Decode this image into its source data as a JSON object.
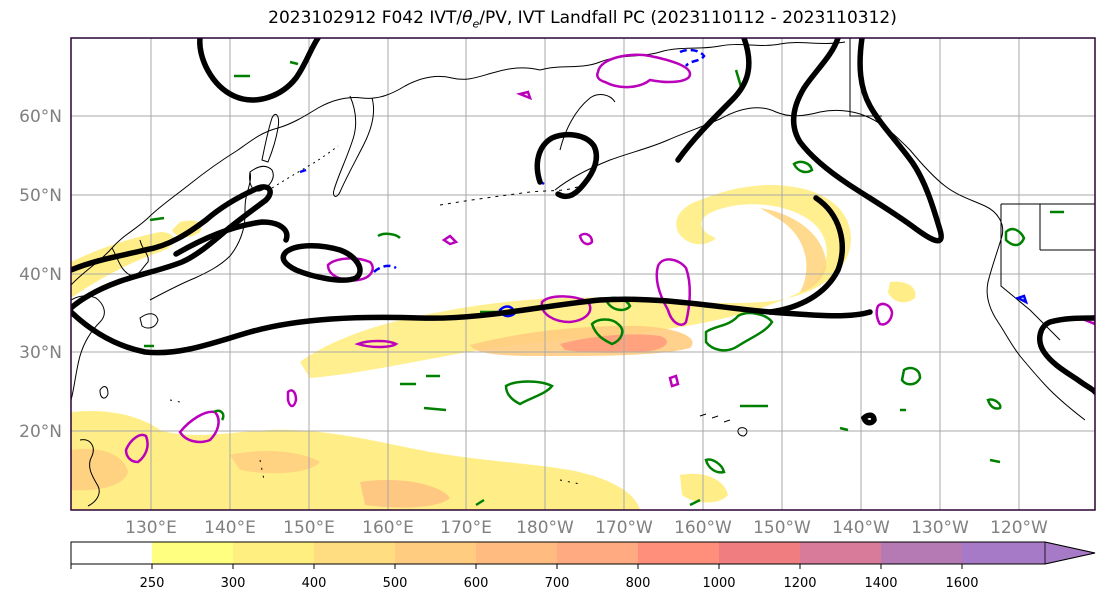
{
  "title": {
    "prefix": "2023102912 F042 IVT/",
    "theta": "θ",
    "sub": "e",
    "suffix": "/PV, IVT Landfall PC (2023110112 - 2023110312)"
  },
  "map": {
    "lat_labels": [
      "20°N",
      "30°N",
      "40°N",
      "50°N",
      "60°N"
    ],
    "lon_labels": [
      "130°E",
      "140°E",
      "150°E",
      "160°E",
      "170°E",
      "180°W",
      "170°W",
      "160°W",
      "150°W",
      "140°W",
      "130°W",
      "120°W"
    ],
    "colors": {
      "ocean": "#ffffff",
      "land_edge": "#000000",
      "grid": "#a9a9a9",
      "thick_contour": "#000000",
      "theta_e_contour": "#008000",
      "pv_contour": "#bb00bb",
      "neg_contour": "#0000ff"
    }
  },
  "colorbar": {
    "levels": [
      "250",
      "300",
      "400",
      "500",
      "600",
      "700",
      "800",
      "1000",
      "1200",
      "1400",
      "1600"
    ],
    "colors": [
      "#ffffff",
      "#ffff80",
      "#ffee80",
      "#ffdd80",
      "#ffcc80",
      "#ffbb80",
      "#ffaa80",
      "#ff8e7a",
      "#f07e80",
      "#d87a99",
      "#b57ab4",
      "#a67ac6"
    ]
  }
}
